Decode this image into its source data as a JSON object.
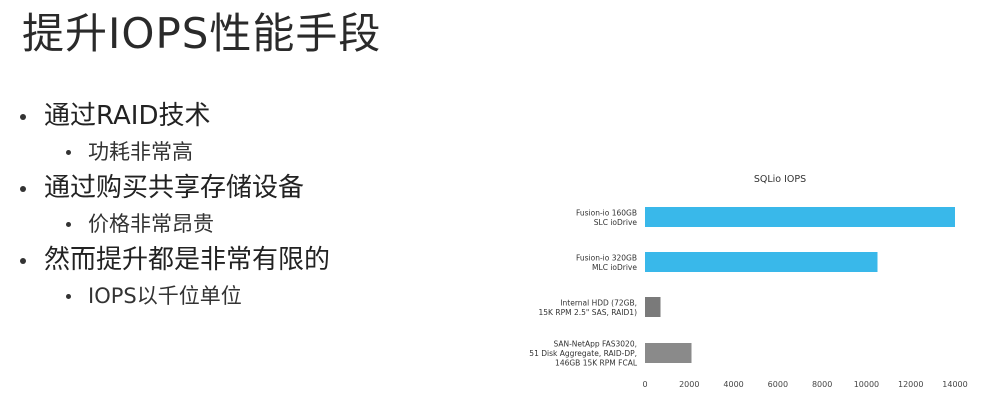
{
  "slide": {
    "title": "提升IOPS性能手段",
    "bullets": [
      {
        "text": "通过RAID技术",
        "sub": "功耗非常高"
      },
      {
        "text": "通过购买共享存储设备",
        "sub": "价格非常昂贵"
      },
      {
        "text": "然而提升都是非常有限的",
        "sub": "IOPS以千位单位"
      }
    ]
  },
  "chart_data": {
    "type": "bar",
    "orientation": "horizontal",
    "title": "SQLio IOPS",
    "xlim": [
      0,
      14000
    ],
    "xticks": [
      0,
      2000,
      4000,
      6000,
      8000,
      10000,
      12000,
      14000
    ],
    "categories": [
      [
        "Fusion-io 160GB",
        "SLC ioDrive"
      ],
      [
        "Fusion-io 320GB",
        "MLC ioDrive"
      ],
      [
        "Internal HDD (72GB,",
        "15K RPM 2.5\" SAS, RAID1)"
      ],
      [
        "SAN-NetApp FAS3020,",
        "51 Disk Aggregate, RAID-DP,",
        "146GB 15K RPM FCAL"
      ]
    ],
    "values": [
      14000,
      10500,
      700,
      2100
    ],
    "colors": [
      "#39b8ea",
      "#39b8ea",
      "#7a7a7a",
      "#8a8a8a"
    ],
    "grid": false,
    "legend": "none"
  }
}
